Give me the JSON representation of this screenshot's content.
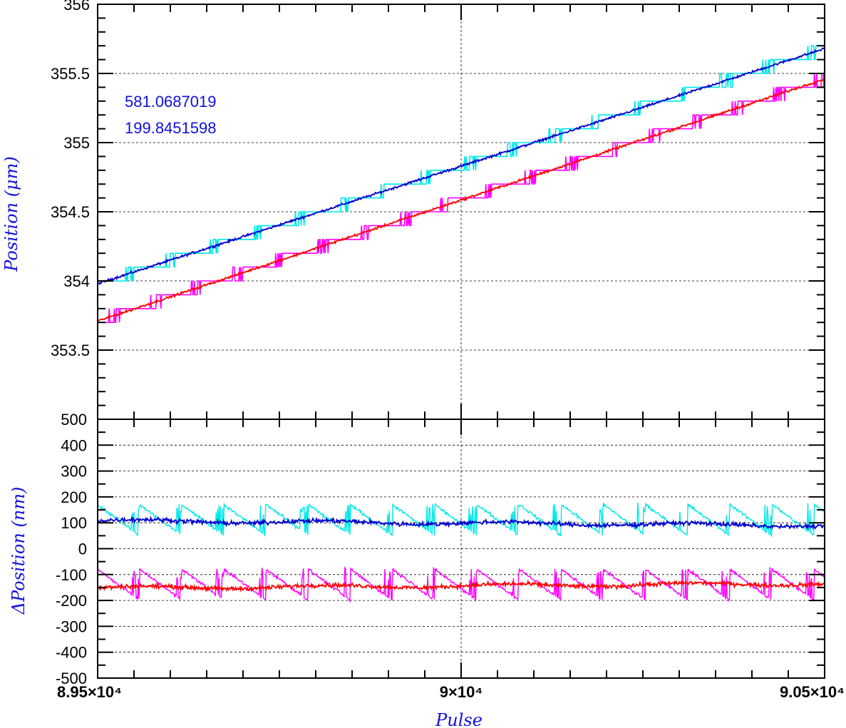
{
  "chart_data": [
    {
      "type": "line",
      "panel": "top",
      "ylabel": "Position (μm)",
      "xlim": [
        89500,
        90500
      ],
      "ylim": [
        353,
        356
      ],
      "ytick_labels": [
        "356",
        "355.5",
        "355",
        "354.5",
        "354",
        "353.5"
      ],
      "ytick_values": [
        356,
        355.5,
        355,
        354.5,
        354,
        353.5
      ],
      "grid": "dashed, major ticks",
      "annotations": [
        "581.0687019",
        "199.8451598"
      ],
      "series": [
        {
          "color": "#00e8e8",
          "style": "staircase",
          "x": [
            89500,
            90500
          ],
          "y": [
            353.98,
            355.68
          ]
        },
        {
          "color": "#0000d0",
          "style": "noisy-line",
          "x": [
            89500,
            90500
          ],
          "y": [
            353.98,
            355.68
          ]
        },
        {
          "color": "#ff00ff",
          "style": "staircase",
          "x": [
            89500,
            90500
          ],
          "y": [
            353.71,
            355.46
          ]
        },
        {
          "color": "#ff0000",
          "style": "noisy-line",
          "x": [
            89500,
            90500
          ],
          "y": [
            353.71,
            355.46
          ]
        }
      ]
    },
    {
      "type": "line",
      "panel": "bottom",
      "ylabel": "ΔPosition (nm)",
      "xlabel": "Pulse",
      "xlim": [
        89500,
        90500
      ],
      "ylim": [
        -500,
        500
      ],
      "ytick_labels": [
        "500",
        "400",
        "300",
        "200",
        "100",
        "0",
        "-100",
        "-200",
        "-300",
        "-400",
        "-500"
      ],
      "ytick_values": [
        500,
        400,
        300,
        200,
        100,
        0,
        -100,
        -200,
        -300,
        -400,
        -500
      ],
      "xtick_labels": [
        "8.95×10⁴",
        "9×10⁴",
        "9.05×10⁴"
      ],
      "xtick_values": [
        89500,
        90000,
        90500
      ],
      "grid": "dashed, major ticks",
      "series": [
        {
          "color": "#00e8e8",
          "style": "sawtooth",
          "mean": 110,
          "amplitude": 60,
          "period": 58
        },
        {
          "color": "#0000d0",
          "style": "noisy-line",
          "mean_start": 108,
          "mean_end": 90,
          "noise": 8
        },
        {
          "color": "#ff00ff",
          "style": "sawtooth",
          "mean": -140,
          "amplitude": 60,
          "period": 58
        },
        {
          "color": "#ff0000",
          "style": "noisy-line",
          "mean_start": -152,
          "mean_end": -135,
          "noise": 8
        }
      ]
    }
  ]
}
